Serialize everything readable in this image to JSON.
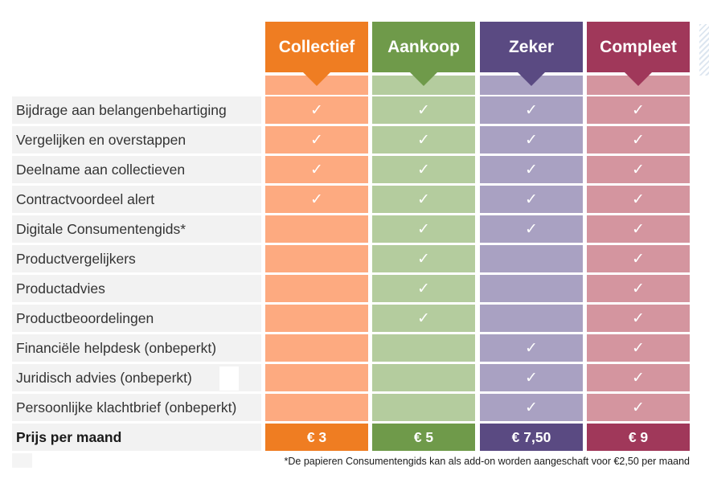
{
  "plans": [
    {
      "name": "Collectief",
      "header_color": "#ef7d22",
      "body_color": "#fdaa80",
      "price": "€ 3"
    },
    {
      "name": "Aankoop",
      "header_color": "#6f9a4a",
      "body_color": "#b4cc9e",
      "price": "€ 5"
    },
    {
      "name": "Zeker",
      "header_color": "#5a4a82",
      "body_color": "#a9a1c2",
      "price": "€ 7,50"
    },
    {
      "name": "Compleet",
      "header_color": "#a0385a",
      "body_color": "#d4959f",
      "price": "€ 9"
    }
  ],
  "check_glyph": "✓",
  "features": [
    {
      "label": "Bijdrage aan belangenbehartiging",
      "included": [
        true,
        true,
        true,
        true
      ]
    },
    {
      "label": "Vergelijken en overstappen",
      "included": [
        true,
        true,
        true,
        true
      ]
    },
    {
      "label": "Deelname aan collectieven",
      "included": [
        true,
        true,
        true,
        true
      ]
    },
    {
      "label": "Contractvoordeel alert",
      "included": [
        true,
        true,
        true,
        true
      ]
    },
    {
      "label": "Digitale Consumentengids*",
      "included": [
        false,
        true,
        true,
        true
      ]
    },
    {
      "label": "Productvergelijkers",
      "included": [
        false,
        true,
        false,
        true
      ]
    },
    {
      "label": "Productadvies",
      "included": [
        false,
        true,
        false,
        true
      ]
    },
    {
      "label": "Productbeoordelingen",
      "included": [
        false,
        true,
        false,
        true
      ]
    },
    {
      "label": "Financiële helpdesk (onbeperkt)",
      "included": [
        false,
        false,
        true,
        true
      ]
    },
    {
      "label": "Juridisch  advies (onbeperkt)",
      "included": [
        false,
        false,
        true,
        true
      ]
    },
    {
      "label": "Persoonlijke klachtbrief (onbeperkt)",
      "included": [
        false,
        false,
        true,
        true
      ]
    }
  ],
  "price_row_label": "Prijs per maand",
  "footnote": "*De papieren Consumentengids kan als add-on worden aangeschaft voor €2,50 per maand"
}
